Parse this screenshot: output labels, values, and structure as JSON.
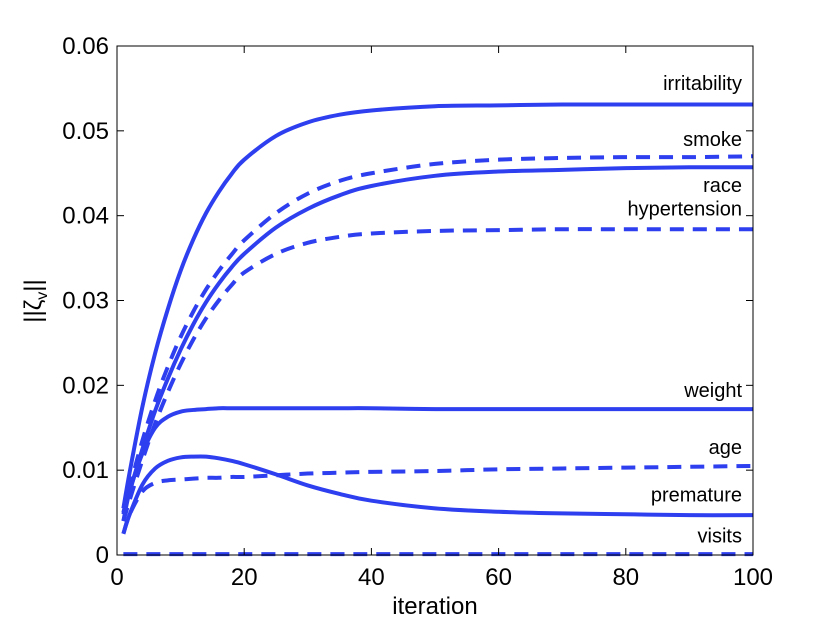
{
  "chart_data": {
    "type": "line",
    "title": "",
    "xlabel": "iteration",
    "ylabel": "||ζ_v||",
    "ylabel_parts": {
      "open": "||ζ",
      "sub": "v",
      "close": "||"
    },
    "xlim": [
      0,
      100
    ],
    "ylim": [
      0,
      0.06
    ],
    "xticks": [
      0,
      20,
      40,
      60,
      80,
      100
    ],
    "xtick_labels": [
      "0",
      "20",
      "40",
      "60",
      "80",
      "100"
    ],
    "yticks": [
      0,
      0.01,
      0.02,
      0.03,
      0.04,
      0.05,
      0.06
    ],
    "ytick_labels": [
      "0",
      "0.01",
      "0.02",
      "0.03",
      "0.04",
      "0.05",
      "0.06"
    ],
    "grid": false,
    "line_color": "#2e3ff0",
    "x": [
      1,
      2,
      4,
      6,
      8,
      10,
      12,
      14,
      16,
      18,
      20,
      25,
      30,
      35,
      40,
      50,
      60,
      70,
      80,
      90,
      100
    ],
    "series": [
      {
        "name": "irritability",
        "style": "solid",
        "values": [
          0.0055,
          0.0098,
          0.0175,
          0.0238,
          0.029,
          0.0335,
          0.0372,
          0.0403,
          0.0428,
          0.0449,
          0.0466,
          0.0494,
          0.051,
          0.0519,
          0.0524,
          0.0529,
          0.053,
          0.0531,
          0.0531,
          0.0531,
          0.0531
        ]
      },
      {
        "name": "smoke",
        "style": "dashed",
        "values": [
          0.005,
          0.008,
          0.0135,
          0.0182,
          0.0222,
          0.0257,
          0.0287,
          0.0313,
          0.0335,
          0.0354,
          0.0371,
          0.0403,
          0.0426,
          0.0441,
          0.045,
          0.0461,
          0.0466,
          0.0468,
          0.0469,
          0.0469,
          0.047
        ]
      },
      {
        "name": "race",
        "style": "solid",
        "values": [
          0.0048,
          0.0075,
          0.0125,
          0.017,
          0.0208,
          0.0242,
          0.0272,
          0.0298,
          0.032,
          0.0339,
          0.0355,
          0.0386,
          0.0408,
          0.0424,
          0.0435,
          0.0447,
          0.0452,
          0.0454,
          0.0456,
          0.0457,
          0.0457
        ]
      },
      {
        "name": "hypertension",
        "style": "dashed",
        "values": [
          0.004,
          0.0065,
          0.0112,
          0.0155,
          0.0192,
          0.0225,
          0.0254,
          0.0279,
          0.03,
          0.0318,
          0.0333,
          0.0355,
          0.0368,
          0.0375,
          0.0379,
          0.0382,
          0.0383,
          0.0384,
          0.0384,
          0.0384,
          0.0384
        ]
      },
      {
        "name": "weight",
        "style": "solid",
        "values": [
          0.004,
          0.0075,
          0.012,
          0.015,
          0.0163,
          0.0169,
          0.0171,
          0.0172,
          0.0173,
          0.0173,
          0.0173,
          0.0173,
          0.0173,
          0.0173,
          0.0173,
          0.0172,
          0.0172,
          0.0172,
          0.0172,
          0.0172,
          0.0172
        ]
      },
      {
        "name": "age",
        "style": "dashed",
        "values": [
          0.0025,
          0.0048,
          0.0075,
          0.0085,
          0.0088,
          0.0089,
          0.009,
          0.0091,
          0.0091,
          0.0092,
          0.0092,
          0.0094,
          0.0096,
          0.0097,
          0.0098,
          0.0099,
          0.0101,
          0.0102,
          0.0103,
          0.0104,
          0.0105
        ]
      },
      {
        "name": "premature",
        "style": "solid",
        "values": [
          0.0025,
          0.0048,
          0.0083,
          0.0102,
          0.0111,
          0.0115,
          0.0116,
          0.0116,
          0.0114,
          0.0111,
          0.0107,
          0.0095,
          0.0082,
          0.0072,
          0.0064,
          0.0055,
          0.0051,
          0.0049,
          0.0048,
          0.0047,
          0.0047
        ]
      },
      {
        "name": "visits",
        "style": "dashed",
        "values": [
          0.0001,
          0.0001,
          0.0001,
          0.0001,
          0.0001,
          0.0001,
          0.0001,
          0.0001,
          0.0001,
          0.0001,
          0.0001,
          0.0001,
          0.0001,
          0.0001,
          0.0001,
          0.0001,
          0.0001,
          0.0001,
          0.0001,
          0.0001,
          0.0001
        ]
      }
    ],
    "series_labels": [
      {
        "text": "irritability",
        "x": 100,
        "y": 0.0548
      },
      {
        "text": "smoke",
        "x": 100,
        "y": 0.0482
      },
      {
        "text": "race",
        "x": 100,
        "y": 0.0428
      },
      {
        "text": "hypertension",
        "x": 100,
        "y": 0.04
      },
      {
        "text": "weight",
        "x": 100,
        "y": 0.0186
      },
      {
        "text": "age",
        "x": 100,
        "y": 0.0119
      },
      {
        "text": "premature",
        "x": 100,
        "y": 0.0063
      },
      {
        "text": "visits",
        "x": 100,
        "y": 0.0015
      }
    ]
  }
}
